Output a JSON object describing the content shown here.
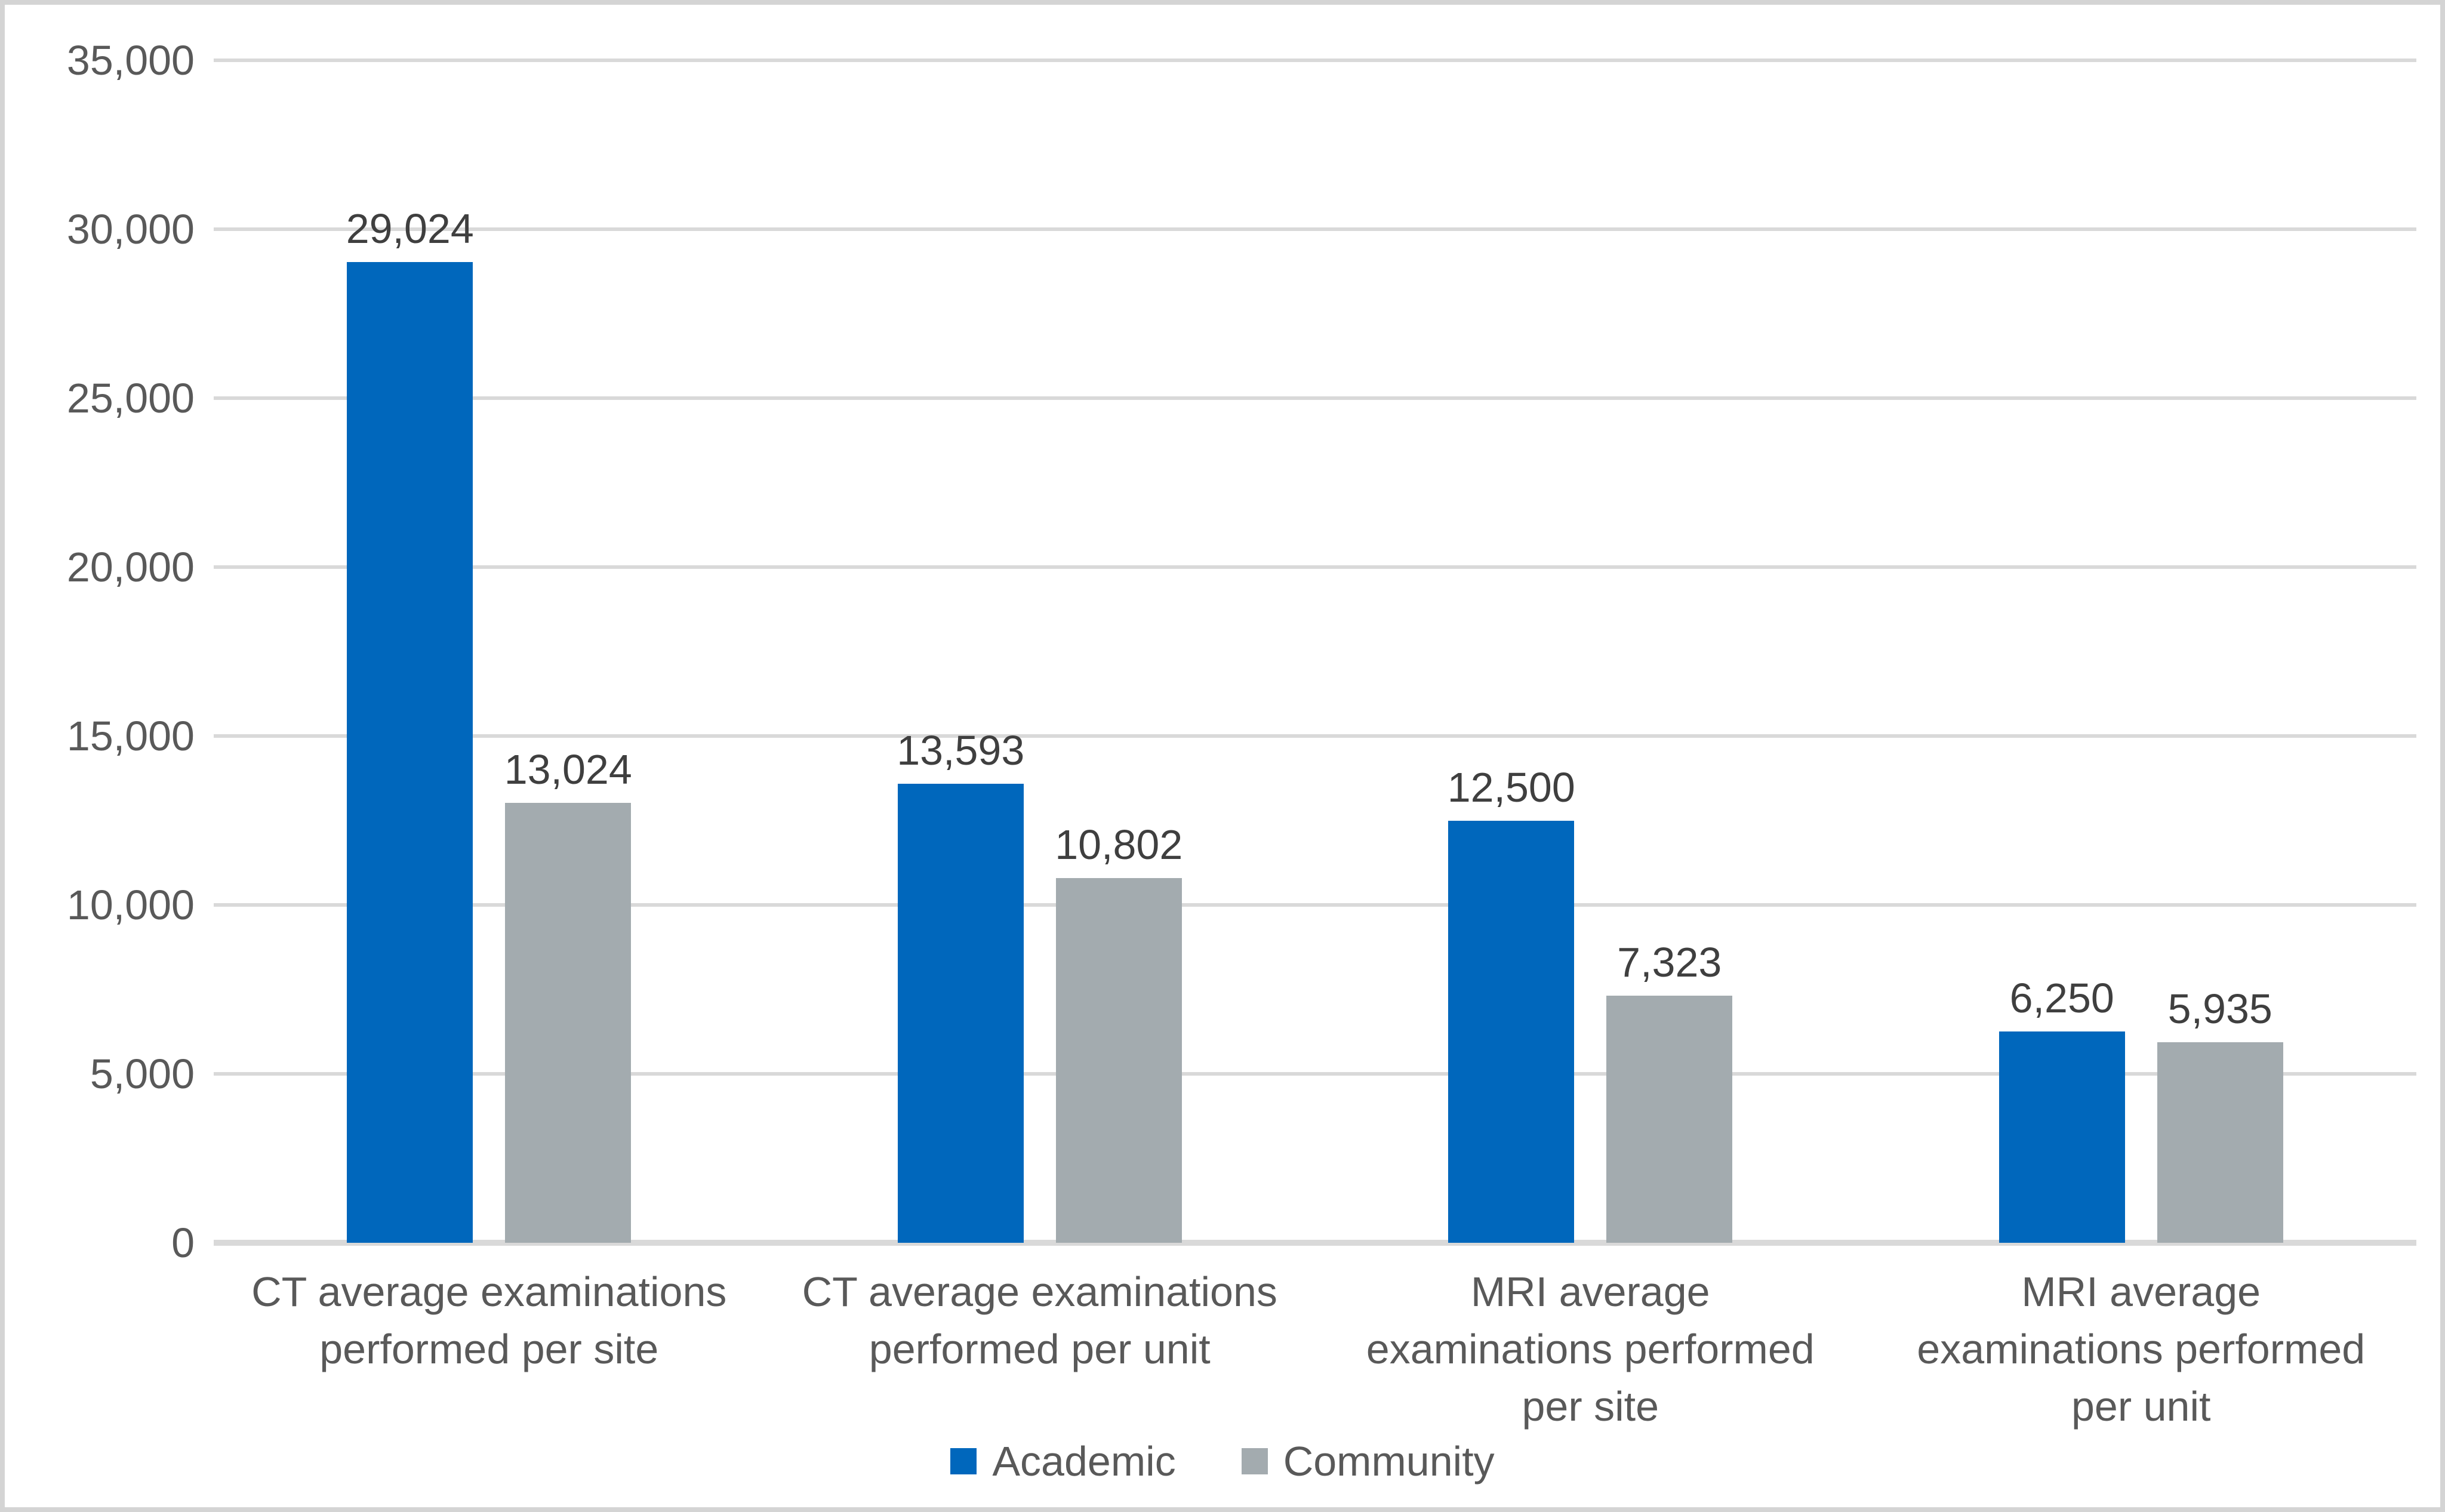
{
  "chart_data": {
    "type": "bar",
    "categories": [
      "CT average examinations performed per site",
      "CT average examinations performed per unit",
      "MRI average examinations performed per site",
      "MRI average examinations performed per unit"
    ],
    "series": [
      {
        "name": "Academic",
        "color": "#0067BC",
        "values": [
          29024,
          13593,
          12500,
          6250
        ],
        "labels": [
          "29,024",
          "13,593",
          "12,500",
          "6,250"
        ]
      },
      {
        "name": "Community",
        "color": "#A3ABAF",
        "values": [
          13024,
          10802,
          7323,
          5935
        ],
        "labels": [
          "13,024",
          "10,802",
          "7,323",
          "5,935"
        ]
      }
    ],
    "y_axis": {
      "min": 0,
      "max": 35000,
      "step": 5000,
      "tick_labels": [
        "0",
        "5,000",
        "10,000",
        "15,000",
        "20,000",
        "25,000",
        "30,000",
        "35,000"
      ]
    },
    "grid": true,
    "legend_position": "bottom",
    "styles": {
      "gridline_color": "#D9D9D9",
      "tick_label_color": "#595959",
      "data_label_color": "#3F3F3F",
      "category_label_color": "#595959",
      "legend_label_color": "#595959",
      "frame_border_color": "#D4D4D4",
      "background_color": "#FFFFFF"
    }
  }
}
